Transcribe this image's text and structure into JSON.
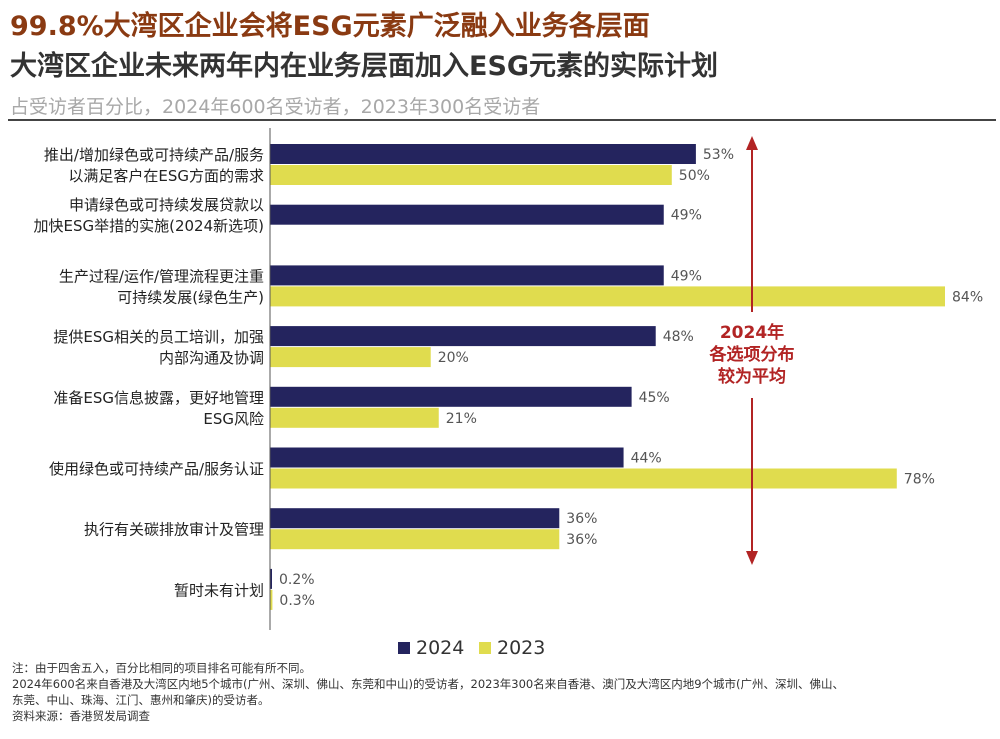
{
  "header": {
    "title": "99.8%大湾区企业会将ESG元素广泛融入业务各层面",
    "subtitle": "大湾区企业未来两年内在业务层面加入ESG元素的实际计划",
    "caption": "占受访者百分比，2024年600名受访者，2023年300名受访者"
  },
  "colors": {
    "series_2024": "#24245e",
    "series_2023": "#e0dc4e",
    "annotation": "#b22424",
    "title": "#8a3a12"
  },
  "chart_data": {
    "type": "bar",
    "orientation": "horizontal",
    "categories": [
      [
        "推出/增加绿色或可持续产品/服务",
        "以满足客户在ESG方面的需求"
      ],
      [
        "申请绿色或可持续发展贷款以",
        "加快ESG举措的实施(2024新选项)"
      ],
      [
        "生产过程/运作/管理流程更注重",
        "可持续发展(绿色生产)"
      ],
      [
        "提供ESG相关的员工培训，加强",
        "内部沟通及协调"
      ],
      [
        "准备ESG信息披露，更好地管理",
        "ESG风险"
      ],
      [
        "使用绿色或可持续产品/服务认证"
      ],
      [
        "执行有关碳排放审计及管理"
      ],
      [
        "暂时未有计划"
      ]
    ],
    "series": [
      {
        "name": "2024",
        "values": [
          53,
          49,
          49,
          48,
          45,
          44,
          36,
          0.2
        ],
        "labels": [
          "53%",
          "49%",
          "49%",
          "48%",
          "45%",
          "44%",
          "36%",
          "0.2%"
        ]
      },
      {
        "name": "2023",
        "values": [
          50,
          null,
          84,
          20,
          21,
          78,
          36,
          0.3
        ],
        "labels": [
          "50%",
          "",
          "84%",
          "20%",
          "21%",
          "78%",
          "36%",
          "0.3%"
        ]
      }
    ],
    "xlim": [
      0,
      84
    ],
    "legend": "bottom",
    "annotation": [
      "2024年",
      "各选项分布",
      "较为平均"
    ]
  },
  "notes": [
    "注：由于四舍五入，百分比相同的项目排名可能有所不同。",
    "2024年600名来自香港及大湾区内地5个城市(广州、深圳、佛山、东莞和中山)的受访者，2023年300名来自香港、澳门及大湾区内地9个城市(广州、深圳、佛山、",
    "东莞、中山、珠海、江门、惠州和肇庆)的受访者。",
    "资料来源：香港贸发局调查"
  ]
}
